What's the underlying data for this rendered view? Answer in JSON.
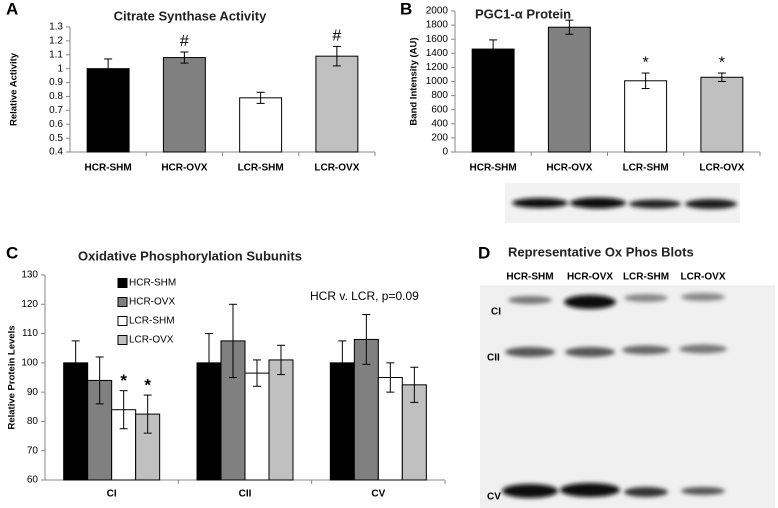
{
  "chart_data": [
    {
      "type": "bar",
      "panel": "A",
      "title": "Citrate Synthase Activity",
      "y_label": "Relative Activity",
      "categories": [
        "HCR-SHM",
        "HCR-OVX",
        "LCR-SHM",
        "LCR-OVX"
      ],
      "values": [
        1.0,
        1.08,
        0.79,
        1.09
      ],
      "errors": [
        0.07,
        0.04,
        0.04,
        0.07
      ],
      "colors": [
        "#000000",
        "#808080",
        "#ffffff",
        "#c0c0c0"
      ],
      "annotations": [
        null,
        "#",
        null,
        "#"
      ],
      "ylim": [
        0.4,
        1.3
      ],
      "yticks": [
        0.4,
        0.5,
        0.6,
        0.7,
        0.8,
        0.9,
        1,
        1.1,
        1.2,
        1.3
      ]
    },
    {
      "type": "bar",
      "panel": "B",
      "title": "PGC1-α  Protein",
      "y_label": "Band Intensity (AU)",
      "categories": [
        "HCR-SHM",
        "HCR-OVX",
        "LCR-SHM",
        "LCR-OVX"
      ],
      "values": [
        1460,
        1770,
        1010,
        1060
      ],
      "errors": [
        130,
        100,
        110,
        60
      ],
      "colors": [
        "#000000",
        "#808080",
        "#ffffff",
        "#c0c0c0"
      ],
      "annotations": [
        null,
        null,
        "*",
        "*"
      ],
      "ylim": [
        0,
        2000
      ],
      "yticks": [
        0,
        200,
        400,
        600,
        800,
        1000,
        1200,
        1400,
        1600,
        1800,
        2000
      ]
    },
    {
      "type": "bar",
      "panel": "C",
      "title": "Oxidative Phosphorylation Subunits",
      "y_label": "Relative Protein Levels",
      "note": "HCR v. LCR, p=0.09",
      "categories": [
        "CI",
        "CII",
        "CV"
      ],
      "series": [
        {
          "name": "HCR-SHM",
          "color": "#000000",
          "values": [
            100,
            100,
            100
          ],
          "errors": [
            7.5,
            10,
            7.5
          ],
          "annotations": [
            null,
            null,
            null
          ]
        },
        {
          "name": "HCR-OVX",
          "color": "#808080",
          "values": [
            94,
            107.5,
            108
          ],
          "errors": [
            8,
            12.5,
            8.5
          ],
          "annotations": [
            null,
            null,
            null
          ]
        },
        {
          "name": "LCR-SHM",
          "color": "#ffffff",
          "values": [
            84,
            96.5,
            95
          ],
          "errors": [
            6.5,
            4.5,
            5
          ],
          "annotations": [
            "*",
            null,
            null
          ]
        },
        {
          "name": "LCR-OVX",
          "color": "#c0c0c0",
          "values": [
            82.5,
            101,
            92.5
          ],
          "errors": [
            6.5,
            5,
            6
          ],
          "annotations": [
            "*",
            null,
            null
          ]
        }
      ],
      "ylim": [
        60,
        130
      ],
      "yticks": [
        60,
        70,
        80,
        90,
        100,
        110,
        120,
        130
      ]
    }
  ],
  "blot": {
    "panel": "D",
    "title": "Representative Ox Phos Blots",
    "lanes": [
      "HCR-SHM",
      "HCR-OVX",
      "LCR-SHM",
      "LCR-OVX"
    ],
    "bands": [
      "CI",
      "CII",
      "CV"
    ]
  }
}
